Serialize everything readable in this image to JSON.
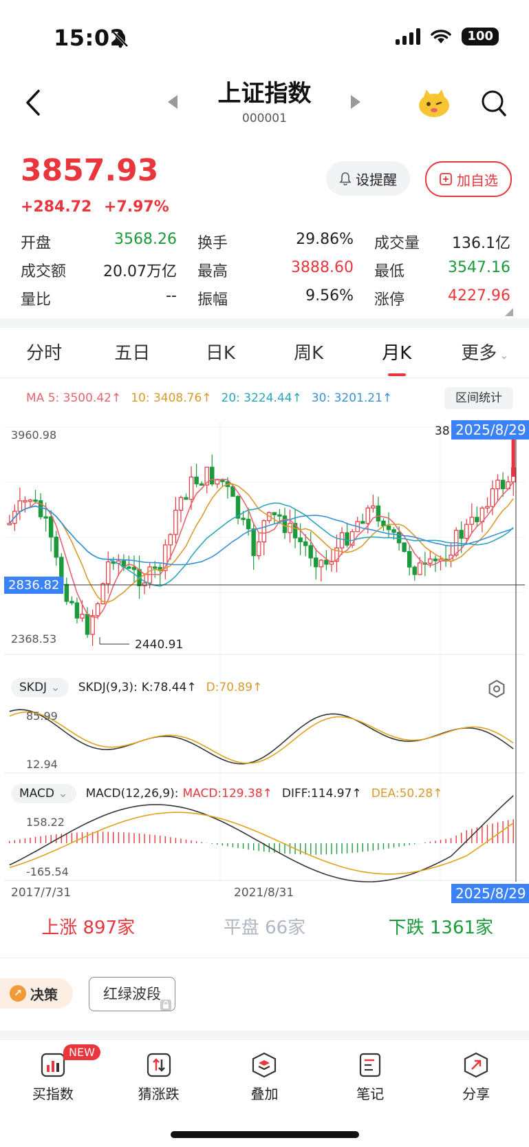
{
  "status": {
    "time": "15:02",
    "battery": "100"
  },
  "header": {
    "title": "上证指数",
    "code": "000001"
  },
  "quote": {
    "price": "3857.93",
    "change": "+284.72",
    "change_pct": "+7.97%",
    "alert_label": "设提醒",
    "fav_label": "加自选"
  },
  "stats": [
    [
      {
        "label": "开盘",
        "value": "3568.26",
        "color": "green"
      },
      {
        "label": "换手",
        "value": "29.86%",
        "color": "neutral"
      },
      {
        "label": "成交量",
        "value": "136.1亿",
        "color": "neutral"
      }
    ],
    [
      {
        "label": "成交额",
        "value": "20.07万亿",
        "color": "neutral"
      },
      {
        "label": "最高",
        "value": "3888.60",
        "color": "red"
      },
      {
        "label": "最低",
        "value": "3547.16",
        "color": "green"
      }
    ],
    [
      {
        "label": "量比",
        "value": "--",
        "color": "neutral"
      },
      {
        "label": "振幅",
        "value": "9.56%",
        "color": "neutral"
      },
      {
        "label": "涨停",
        "value": "4227.96",
        "color": "red"
      }
    ]
  ],
  "tabs": [
    "分时",
    "五日",
    "日K",
    "周K",
    "月K",
    "更多"
  ],
  "active_tab": 4,
  "ma": {
    "ma5": "MA 5: 3500.42↑",
    "ma10": "10: 3408.76↑",
    "ma20": "20: 3224.44↑",
    "ma30": "30: 3201.21↑",
    "range_stats": "区间统计",
    "colors": {
      "ma5": "#e8636b",
      "ma10": "#d99a2b",
      "ma20": "#2aa6b8",
      "ma30": "#3a90d8"
    }
  },
  "chart": {
    "price_max": "3960.98",
    "price_min": "2368.53",
    "cursor_price": "2836.82",
    "cursor_date": "2025/8/29",
    "peek_label": "38",
    "low_marker": "2440.91",
    "date_left": "2017/7/31",
    "date_mid": "2021/8/31",
    "date_right": "2025/8/29"
  },
  "chart_data": {
    "type": "candlestick",
    "y_range": [
      2368.53,
      3960.98
    ],
    "period": "monthly",
    "x_start": "2017/7/31",
    "x_end": "2025/8/29",
    "last_candle": {
      "date": "2025/8/29",
      "open": 3568.26,
      "high": 3888.6,
      "low": 3547.16,
      "close": 3857.93
    },
    "low_point": 2440.91,
    "ma": {
      "ma5": 3500.42,
      "ma10": 3408.76,
      "ma20": 3224.44,
      "ma30": 3201.21
    }
  },
  "skdj": {
    "selector": "SKDJ",
    "params": "SKDJ(9,3):",
    "k": "K:78.44↑",
    "d": "D:70.89↑",
    "hi": "85.99",
    "lo": "12.94"
  },
  "macd": {
    "selector": "MACD",
    "params": "MACD(12,26,9):",
    "macd": "MACD:129.38↑",
    "diff": "DIFF:114.97↑",
    "dea": "DEA:50.28↑",
    "hi": "158.22",
    "lo": "-165.54"
  },
  "breadth": {
    "up_label": "上涨",
    "up_count": "897家",
    "flat_label": "平盘",
    "flat_count": "66家",
    "down_label": "下跌",
    "down_count": "1361家"
  },
  "tools": {
    "decision": "决策",
    "wave": "红绿波段"
  },
  "bottom_nav": [
    {
      "label": "买指数",
      "badge": "NEW"
    },
    {
      "label": "猜涨跌"
    },
    {
      "label": "叠加"
    },
    {
      "label": "笔记"
    },
    {
      "label": "分享"
    }
  ]
}
